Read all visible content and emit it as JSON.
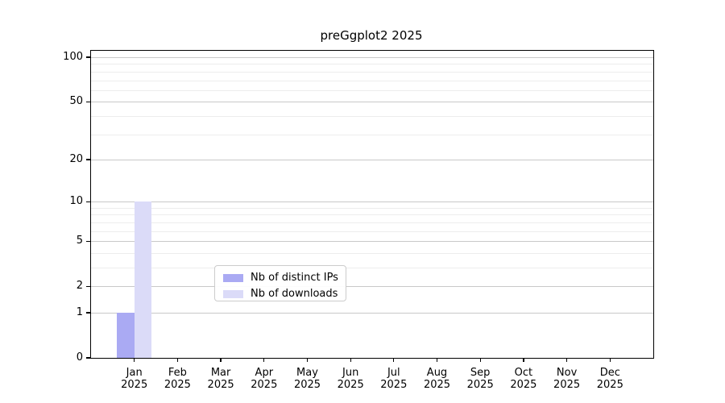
{
  "chart_data": {
    "type": "bar",
    "title": "preGgplot2 2025",
    "x_axis": {
      "months": [
        "Jan",
        "Feb",
        "Mar",
        "Apr",
        "May",
        "Jun",
        "Jul",
        "Aug",
        "Sep",
        "Oct",
        "Nov",
        "Dec"
      ],
      "year": "2025"
    },
    "y_axis": {
      "scale": "log1p",
      "ylim": [
        0,
        100
      ],
      "major_ticks": [
        {
          "value": 0,
          "label": "0"
        },
        {
          "value": 1,
          "label": "1"
        },
        {
          "value": 2,
          "label": "2"
        },
        {
          "value": 5,
          "label": "5"
        },
        {
          "value": 10,
          "label": "10"
        },
        {
          "value": 20,
          "label": "20"
        },
        {
          "value": 50,
          "label": "50"
        },
        {
          "value": 100,
          "label": "100"
        }
      ],
      "minor_ticks": [
        3,
        4,
        6,
        7,
        8,
        9,
        30,
        40,
        60,
        70,
        80,
        90
      ]
    },
    "series": [
      {
        "name": "Nb of distinct IPs",
        "color": "#aaaaf3",
        "values": [
          1,
          0,
          0,
          0,
          0,
          0,
          0,
          0,
          0,
          0,
          0,
          0
        ]
      },
      {
        "name": "Nb of downloads",
        "color": "#dbdbf8",
        "values": [
          10,
          0,
          0,
          0,
          0,
          0,
          0,
          0,
          0,
          0,
          0,
          0
        ]
      }
    ],
    "grid": true,
    "legend_position": "lower center"
  },
  "colors": {
    "major_grid": "#c9c9c9",
    "minor_grid": "#ededed",
    "axis": "#000000",
    "background": "#ffffff"
  }
}
